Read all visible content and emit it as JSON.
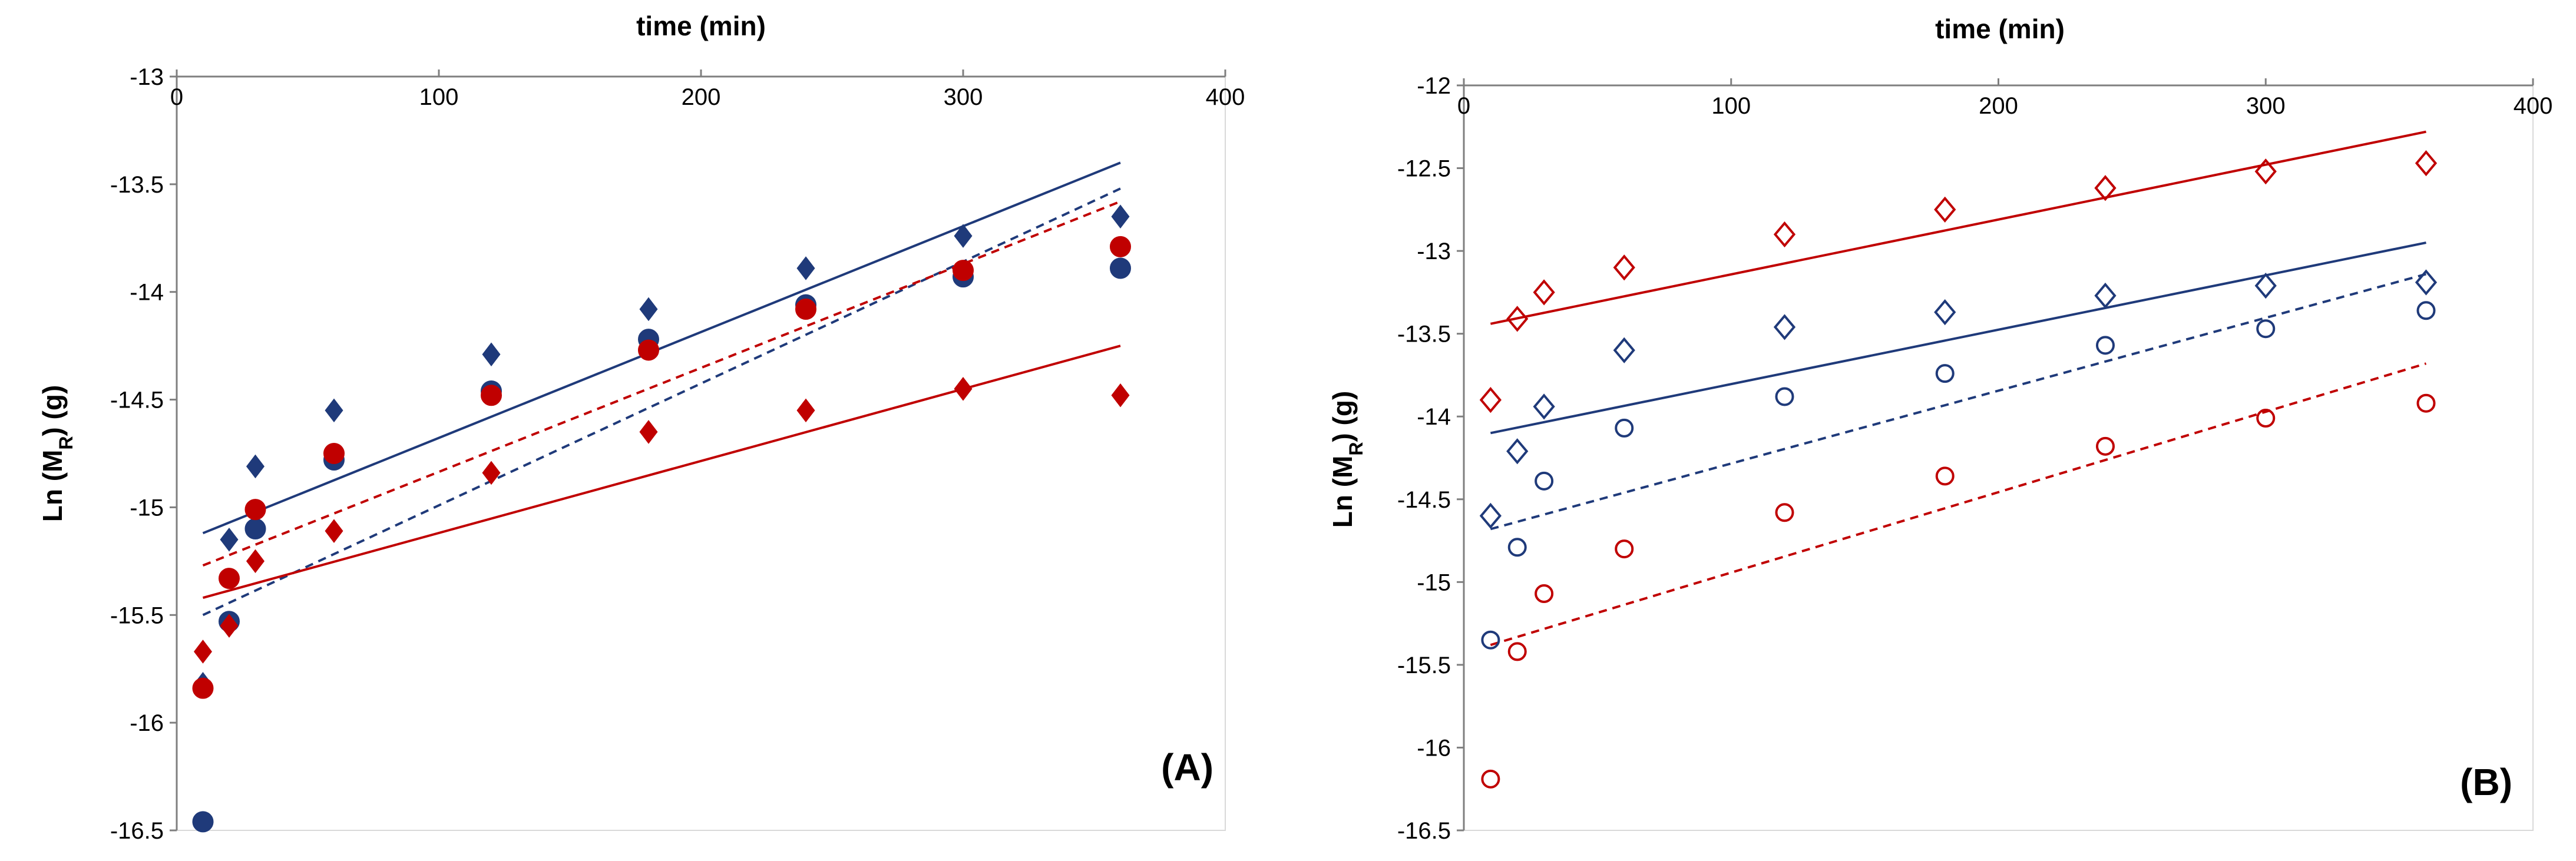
{
  "chart_data": [
    {
      "type": "scatter",
      "panel_label": "(A)",
      "xlabel": "time (min)",
      "ylabel": "Ln (M",
      "ylabel_sub": "R",
      "ylabel_suffix": ") (g)",
      "xlim": [
        0,
        400
      ],
      "ylim": [
        -16.5,
        -13
      ],
      "xticks": [
        0,
        100,
        200,
        300,
        400
      ],
      "yticks": [
        -13,
        -13.5,
        -14,
        -14.5,
        -15,
        -15.5,
        -16,
        -16.5
      ],
      "x_axis_position": "top",
      "grid": false,
      "series": [
        {
          "name": "blue-diamonds",
          "marker": "diamond",
          "filled": true,
          "color": "#1f3a7a",
          "x": [
            10,
            20,
            30,
            60,
            120,
            180,
            240,
            300,
            360
          ],
          "y": [
            -15.82,
            -15.15,
            -14.81,
            -14.55,
            -14.29,
            -14.08,
            -13.89,
            -13.74,
            -13.65
          ]
        },
        {
          "name": "blue-circles",
          "marker": "circle",
          "filled": true,
          "color": "#1f3a7a",
          "x": [
            10,
            20,
            30,
            60,
            120,
            180,
            240,
            300,
            360
          ],
          "y": [
            -16.46,
            -15.53,
            -15.1,
            -14.78,
            -14.46,
            -14.22,
            -14.06,
            -13.93,
            -13.89
          ]
        },
        {
          "name": "red-diamonds",
          "marker": "diamond",
          "filled": true,
          "color": "#c00000",
          "x": [
            10,
            20,
            30,
            60,
            120,
            180,
            240,
            300,
            360
          ],
          "y": [
            -15.67,
            -15.55,
            -15.25,
            -15.11,
            -14.84,
            -14.65,
            -14.55,
            -14.45,
            -14.48
          ]
        },
        {
          "name": "red-circles",
          "marker": "circle",
          "filled": true,
          "color": "#c00000",
          "x": [
            10,
            20,
            30,
            60,
            120,
            180,
            240,
            300,
            360
          ],
          "y": [
            -15.84,
            -15.33,
            -15.01,
            -14.75,
            -14.48,
            -14.27,
            -14.08,
            -13.9,
            -13.79
          ]
        }
      ],
      "trendlines": [
        {
          "name": "blue-solid",
          "color": "#1f3a7a",
          "dashed": false,
          "x": [
            10,
            360
          ],
          "y": [
            -15.12,
            -13.4
          ]
        },
        {
          "name": "blue-dashed",
          "color": "#1f3a7a",
          "dashed": true,
          "x": [
            10,
            360
          ],
          "y": [
            -15.5,
            -13.52
          ]
        },
        {
          "name": "red-solid",
          "color": "#c00000",
          "dashed": false,
          "x": [
            10,
            360
          ],
          "y": [
            -15.42,
            -14.25
          ]
        },
        {
          "name": "red-dashed",
          "color": "#c00000",
          "dashed": true,
          "x": [
            10,
            360
          ],
          "y": [
            -15.27,
            -13.58
          ]
        }
      ]
    },
    {
      "type": "scatter",
      "panel_label": "(B)",
      "xlabel": "time (min)",
      "ylabel": "Ln (M",
      "ylabel_sub": "R",
      "ylabel_suffix": ") (g)",
      "xlim": [
        0,
        400
      ],
      "ylim": [
        -16.5,
        -12
      ],
      "xticks": [
        0,
        100,
        200,
        300,
        400
      ],
      "yticks": [
        -12,
        -12.5,
        -13,
        -13.5,
        -14,
        -14.5,
        -15,
        -15.5,
        -16,
        -16.5
      ],
      "x_axis_position": "top",
      "grid": false,
      "series": [
        {
          "name": "red-open-diamonds",
          "marker": "diamond",
          "filled": false,
          "color": "#c00000",
          "x": [
            10,
            20,
            30,
            60,
            120,
            180,
            240,
            300,
            360
          ],
          "y": [
            -13.9,
            -13.41,
            -13.25,
            -13.1,
            -12.9,
            -12.75,
            -12.62,
            -12.52,
            -12.47
          ]
        },
        {
          "name": "blue-open-diamonds",
          "marker": "diamond",
          "filled": false,
          "color": "#1f3a7a",
          "x": [
            10,
            20,
            30,
            60,
            120,
            180,
            240,
            300,
            360
          ],
          "y": [
            -14.6,
            -14.21,
            -13.94,
            -13.6,
            -13.46,
            -13.37,
            -13.27,
            -13.21,
            -13.19
          ]
        },
        {
          "name": "blue-open-circles",
          "marker": "circle",
          "filled": false,
          "color": "#1f3a7a",
          "x": [
            10,
            20,
            30,
            60,
            120,
            180,
            240,
            300,
            360
          ],
          "y": [
            -15.35,
            -14.79,
            -14.39,
            -14.07,
            -13.88,
            -13.74,
            -13.57,
            -13.47,
            -13.36
          ]
        },
        {
          "name": "red-open-circles",
          "marker": "circle",
          "filled": false,
          "color": "#c00000",
          "x": [
            10,
            20,
            30,
            60,
            120,
            180,
            240,
            300,
            360
          ],
          "y": [
            -16.19,
            -15.42,
            -15.07,
            -14.8,
            -14.58,
            -14.36,
            -14.18,
            -14.01,
            -13.92
          ]
        }
      ],
      "trendlines": [
        {
          "name": "red-solid",
          "color": "#c00000",
          "dashed": false,
          "x": [
            10,
            360
          ],
          "y": [
            -13.44,
            -12.28
          ]
        },
        {
          "name": "blue-solid",
          "color": "#1f3a7a",
          "dashed": false,
          "x": [
            10,
            360
          ],
          "y": [
            -14.1,
            -12.95
          ]
        },
        {
          "name": "blue-dashed",
          "color": "#1f3a7a",
          "dashed": true,
          "x": [
            10,
            360
          ],
          "y": [
            -14.68,
            -13.14
          ]
        },
        {
          "name": "red-dashed",
          "color": "#c00000",
          "dashed": true,
          "x": [
            10,
            360
          ],
          "y": [
            -15.38,
            -13.68
          ]
        }
      ]
    }
  ]
}
